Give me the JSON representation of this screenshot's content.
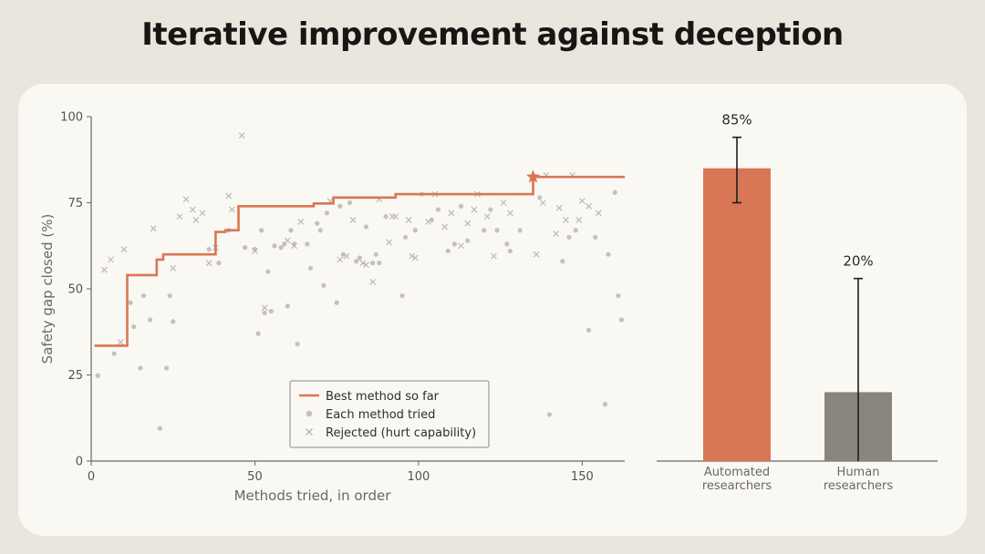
{
  "title": "Iterative improvement against deception",
  "colors": {
    "accent": "#d97655",
    "points": "#c4c1bb",
    "human_bar": "#87857d",
    "axis": "#6b6864",
    "background": "#e9e6dd",
    "card": "#f9f8f3"
  },
  "chart_data": [
    {
      "type": "scatter",
      "xlabel": "Methods tried, in order",
      "ylabel": "Safety gap closed (%)",
      "xlim": [
        0,
        163
      ],
      "ylim": [
        0,
        100
      ],
      "xticks": [
        0,
        50,
        100,
        150
      ],
      "yticks": [
        0,
        25,
        50,
        75,
        100
      ],
      "grid": false,
      "legend": {
        "position": "lower-center",
        "entries": [
          "Best method so far",
          "Each method tried",
          "Rejected (hurt capability)"
        ]
      },
      "best_so_far": {
        "name": "Best method so far",
        "x": [
          1,
          11,
          11,
          20,
          20,
          22,
          22,
          38,
          38,
          41,
          41,
          45,
          45,
          68,
          68,
          74,
          74,
          93,
          93,
          135,
          135,
          163
        ],
        "y": [
          33.5,
          33.5,
          54,
          54,
          58.5,
          58.5,
          60,
          60,
          66.5,
          66.5,
          67,
          67,
          74,
          74,
          74.8,
          74.8,
          76.5,
          76.5,
          77.5,
          77.5,
          82.5,
          82.5
        ]
      },
      "final_best": {
        "x": 135,
        "y": 82.5
      },
      "tried": {
        "name": "Each method tried",
        "x": [
          2,
          7,
          12,
          13,
          15,
          16,
          18,
          21,
          23,
          24,
          25,
          36,
          39,
          42,
          47,
          50,
          51,
          52,
          53,
          54,
          55,
          56,
          58,
          59,
          60,
          61,
          62,
          63,
          66,
          67,
          69,
          70,
          71,
          72,
          75,
          76,
          77,
          79,
          81,
          82,
          84,
          86,
          87,
          88,
          90,
          95,
          96,
          99,
          101,
          104,
          106,
          109,
          111,
          113,
          115,
          120,
          122,
          124,
          127,
          128,
          131,
          137,
          140,
          144,
          146,
          148,
          152,
          154,
          157,
          158,
          160,
          161,
          162
        ],
        "y": [
          24.8,
          31.2,
          46,
          39,
          27,
          48,
          41,
          9.5,
          27,
          48,
          40.5,
          61.5,
          57.5,
          67,
          62,
          61.5,
          37,
          67,
          43,
          55,
          43.5,
          62.5,
          62,
          63,
          45,
          67,
          63,
          34,
          63,
          56,
          69,
          67,
          51,
          72,
          46,
          74,
          60,
          75,
          58,
          59,
          68,
          57.5,
          60,
          57.5,
          71,
          48,
          65,
          67,
          77.5,
          70,
          73,
          61,
          63,
          74,
          64,
          67,
          73,
          67,
          63,
          61,
          67,
          76.5,
          13.5,
          58,
          65,
          67,
          38,
          65,
          16.5,
          60,
          78,
          48,
          41
        ]
      },
      "rejected": {
        "name": "Rejected (hurt capability)",
        "x": [
          4,
          6,
          9,
          10,
          19,
          25,
          27,
          29,
          31,
          32,
          34,
          36,
          38,
          42,
          43,
          46,
          50,
          53,
          60,
          62,
          64,
          73,
          76,
          78,
          80,
          83,
          84,
          86,
          88,
          91,
          92,
          93,
          97,
          98,
          99,
          103,
          105,
          108,
          110,
          113,
          115,
          117,
          118,
          121,
          123,
          126,
          128,
          136,
          138,
          139,
          142,
          143,
          145,
          147,
          149,
          150,
          152,
          155
        ],
        "y": [
          55.5,
          58.5,
          34.5,
          61.5,
          67.5,
          56,
          71,
          76,
          73,
          70,
          72,
          57.5,
          62,
          77,
          73,
          94.5,
          61,
          44.5,
          64,
          62.5,
          69.5,
          75.5,
          58.5,
          59.5,
          70,
          57.5,
          57,
          52,
          76,
          63.5,
          71,
          71,
          70,
          59.5,
          59,
          69.5,
          77.5,
          68,
          72,
          62.5,
          69,
          73,
          77.5,
          71,
          59.5,
          75,
          72,
          60,
          75,
          83,
          66,
          73.5,
          70,
          83,
          70,
          75.5,
          74,
          72
        ]
      }
    },
    {
      "type": "bar",
      "categories": [
        "Automated researchers",
        "Human researchers"
      ],
      "category_lines": [
        [
          "Automated",
          "researchers"
        ],
        [
          "Human",
          "researchers"
        ]
      ],
      "values": [
        85,
        20
      ],
      "value_labels": [
        "85%",
        "20%"
      ],
      "error_low": [
        75,
        0
      ],
      "error_high": [
        94,
        53
      ],
      "ylim": [
        0,
        100
      ],
      "colors": [
        "#d97655",
        "#87857d"
      ]
    }
  ]
}
